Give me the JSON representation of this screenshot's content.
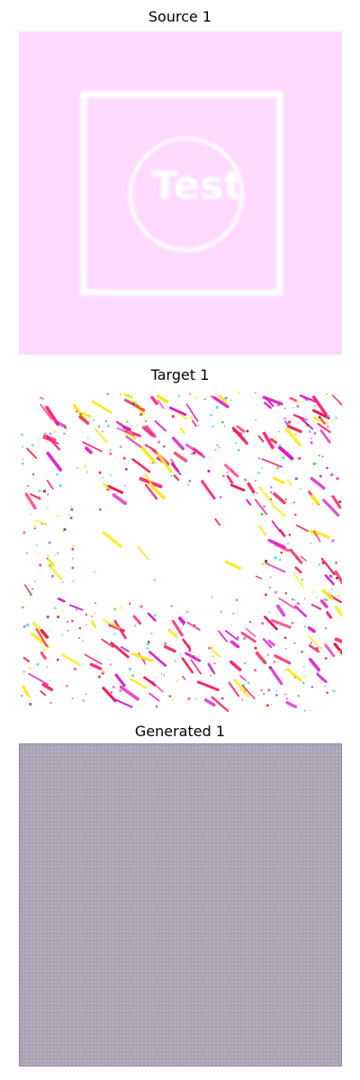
{
  "panels": [
    {
      "title": "Source 1",
      "image_text": "Test",
      "colors": {
        "background": "#fed9fe",
        "outline": "#ffffff"
      }
    },
    {
      "title": "Target 1",
      "colors": {
        "background": "#ffffff",
        "speckles": [
          "#e8174f",
          "#d91cc5",
          "#ff2277",
          "#f7ea14",
          "#27d7f0",
          "#2bd832",
          "#8a3a2f",
          "#8d44e0"
        ]
      }
    },
    {
      "title": "Generated 1",
      "colors": {
        "background": "#a9a2b3",
        "grid": "#b8b1c2",
        "border": "#8d8799"
      }
    }
  ]
}
